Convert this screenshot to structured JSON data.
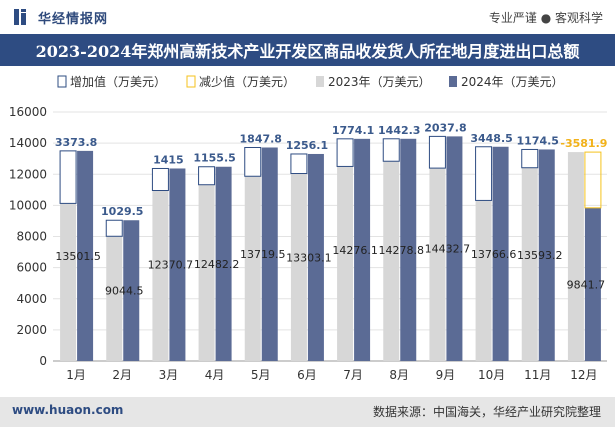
{
  "header": {
    "brand": "华经情报网",
    "tagline": "专业严谨 ● 客观科学"
  },
  "footer": {
    "website": "www.huaon.com",
    "source": "数据来源：中国海关，华经产业研究院整理"
  },
  "colors": {
    "title_bg": "#2e4c82",
    "series_2023": "#d7d7d7",
    "series_2024": "#5b6b95",
    "increase": "#2e4c82",
    "decrease": "#f5c21b"
  },
  "chart_data": {
    "type": "bar",
    "title": "2023-2024年郑州高新技术产业开发区商品收发货人所在地月度进出口总额",
    "categories": [
      "1月",
      "2月",
      "3月",
      "4月",
      "5月",
      "6月",
      "7月",
      "8月",
      "9月",
      "10月",
      "11月",
      "12月"
    ],
    "series": [
      {
        "name": "2023年（万美元）",
        "values": [
          10127.7,
          8015.0,
          10955.7,
          11326.7,
          11871.7,
          12047.0,
          12502.0,
          12836.5,
          12394.9,
          10318.1,
          12418.7,
          13423.6
        ]
      },
      {
        "name": "2024年（万美元）",
        "values": [
          13501.5,
          9044.5,
          12370.7,
          12482.2,
          13719.5,
          13303.1,
          14276.1,
          14278.8,
          14432.7,
          13766.6,
          13593.2,
          9841.7
        ]
      }
    ],
    "change": {
      "increase_name": "增加值（万美元）",
      "decrease_name": "减少值（万美元）",
      "labels": [
        "3373.8",
        "1029.5",
        "1415",
        "1155.5",
        "1847.8",
        "1256.1",
        "1774.1",
        "1442.3",
        "2037.8",
        "3448.5",
        "1174.5",
        "-3581.9"
      ]
    },
    "value_labels_2024": [
      "13501.5",
      "9044.5",
      "12370.7",
      "12482.2",
      "13719.5",
      "13303.1",
      "14276.1",
      "14278.8",
      "14432.7",
      "13766.6",
      "13593.2",
      "9841.7"
    ],
    "y_ticks": [
      "0",
      "2000",
      "4000",
      "6000",
      "8000",
      "10000",
      "12000",
      "14000",
      "16000"
    ],
    "ylim": [
      0,
      16000
    ],
    "grid": true,
    "legend_position": "top-left"
  }
}
